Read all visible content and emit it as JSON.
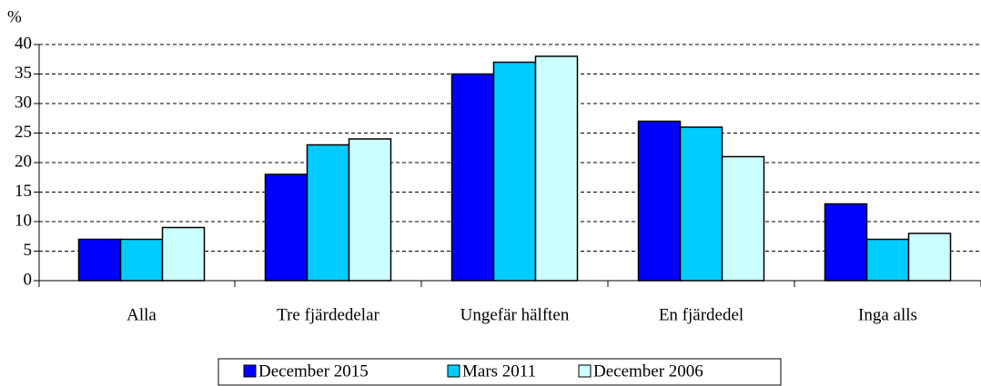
{
  "chart_data": {
    "type": "bar",
    "y_label": "%",
    "categories": [
      "Alla",
      "Tre fjärdedelar",
      "Ungefär hälften",
      "En fjärdedel",
      "Inga alls"
    ],
    "series": [
      {
        "name": "December 2015",
        "color": "#0000ff",
        "values": [
          7,
          18,
          35,
          27,
          13
        ]
      },
      {
        "name": "Mars 2011",
        "color": "#00ccff",
        "values": [
          7,
          23,
          37,
          26,
          7
        ]
      },
      {
        "name": "December 2006",
        "color": "#ccffff",
        "values": [
          9,
          24,
          38,
          21,
          8
        ]
      }
    ],
    "ylim": [
      0,
      40
    ],
    "yticks": [
      0,
      5,
      10,
      15,
      20,
      25,
      30,
      35,
      40
    ],
    "grid": true,
    "legend": "bottom"
  }
}
